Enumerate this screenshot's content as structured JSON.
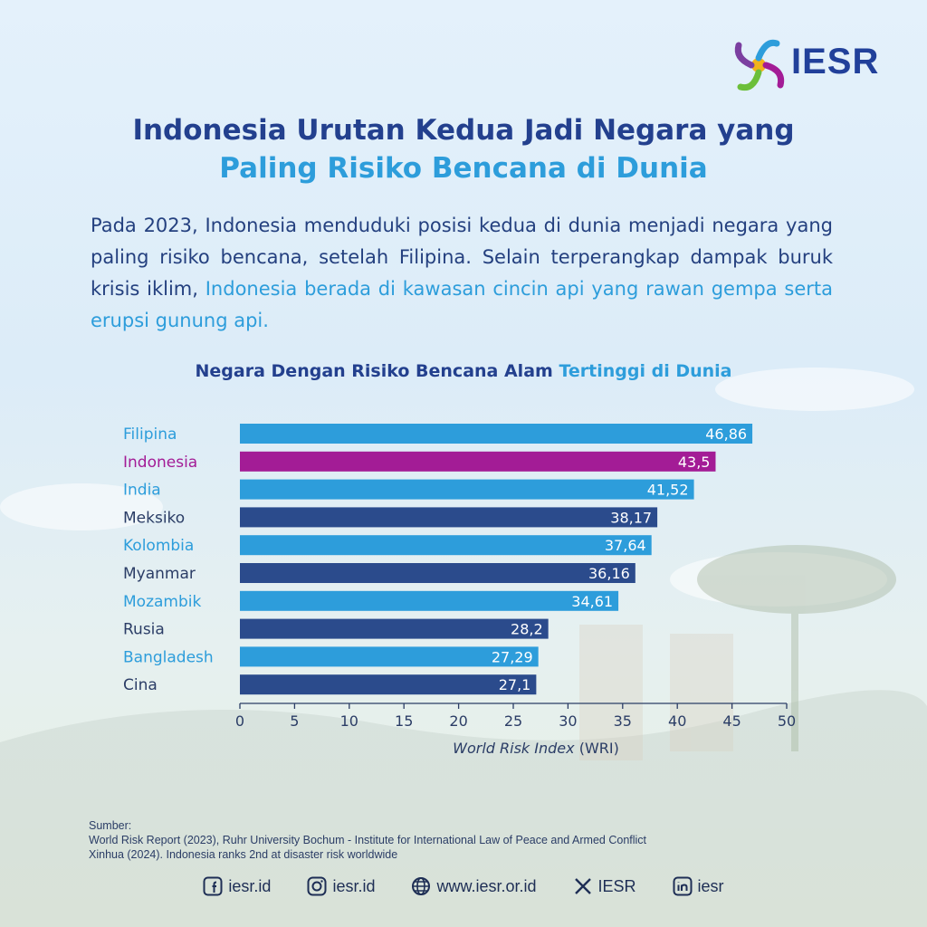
{
  "brand": {
    "name": "IESR"
  },
  "headline": {
    "line1": "Indonesia Urutan Kedua Jadi Negara yang",
    "line2": "Paling Risiko Bencana di Dunia"
  },
  "description": {
    "text": "Pada 2023, Indonesia menduduki posisi kedua di dunia menjadi negara yang paling risiko bencana, setelah Filipina. Selain terperangkap dampak buruk krisis iklim,",
    "highlight": "Indonesia berada di kawasan cincin api yang rawan gempa serta erupsi gunung api."
  },
  "chart_heading": {
    "text": "Negara Dengan Risiko Bencana Alam",
    "highlight": "Tertinggi di Dunia"
  },
  "chart_data": {
    "type": "bar",
    "orientation": "horizontal",
    "categories": [
      "Filipina",
      "Indonesia",
      "India",
      "Meksiko",
      "Kolombia",
      "Myanmar",
      "Mozambik",
      "Rusia",
      "Bangladesh",
      "Cina"
    ],
    "values": [
      46.86,
      43.5,
      41.52,
      38.17,
      37.64,
      36.16,
      34.61,
      28.2,
      27.29,
      27.1
    ],
    "value_labels": [
      "46,86",
      "43,5",
      "41,52",
      "38,17",
      "37,64",
      "36,16",
      "34,61",
      "28,2",
      "27,29",
      "27,1"
    ],
    "bar_colors": [
      "#2d9ddb",
      "#a31c96",
      "#2d9ddb",
      "#2b4b8c",
      "#2d9ddb",
      "#2b4b8c",
      "#2d9ddb",
      "#2b4b8c",
      "#2d9ddb",
      "#2b4b8c"
    ],
    "label_colors": [
      "#2d9ddb",
      "#a31c96",
      "#2d9ddb",
      "#2b3d66",
      "#2d9ddb",
      "#2b3d66",
      "#2d9ddb",
      "#2b3d66",
      "#2d9ddb",
      "#2b3d66"
    ],
    "xlim": [
      0,
      50
    ],
    "xticks": [
      0,
      5,
      10,
      15,
      20,
      25,
      30,
      35,
      40,
      45,
      50
    ],
    "xlabel_italic": "World Risk Index",
    "xlabel_rest": " (WRI)",
    "grid": false
  },
  "sources": {
    "heading": "Sumber:",
    "lines": [
      "World Risk Report (2023), Ruhr University Bochum - Institute for International Law of Peace and Armed Conflict",
      "Xinhua (2024). Indonesia ranks 2nd at disaster risk worldwide"
    ]
  },
  "social": [
    {
      "icon": "facebook-icon",
      "label": "iesr.id"
    },
    {
      "icon": "instagram-icon",
      "label": "iesr.id"
    },
    {
      "icon": "globe-icon",
      "label": "www.iesr.or.id"
    },
    {
      "icon": "x-icon",
      "label": "IESR"
    },
    {
      "icon": "linkedin-icon",
      "label": "iesr"
    }
  ]
}
